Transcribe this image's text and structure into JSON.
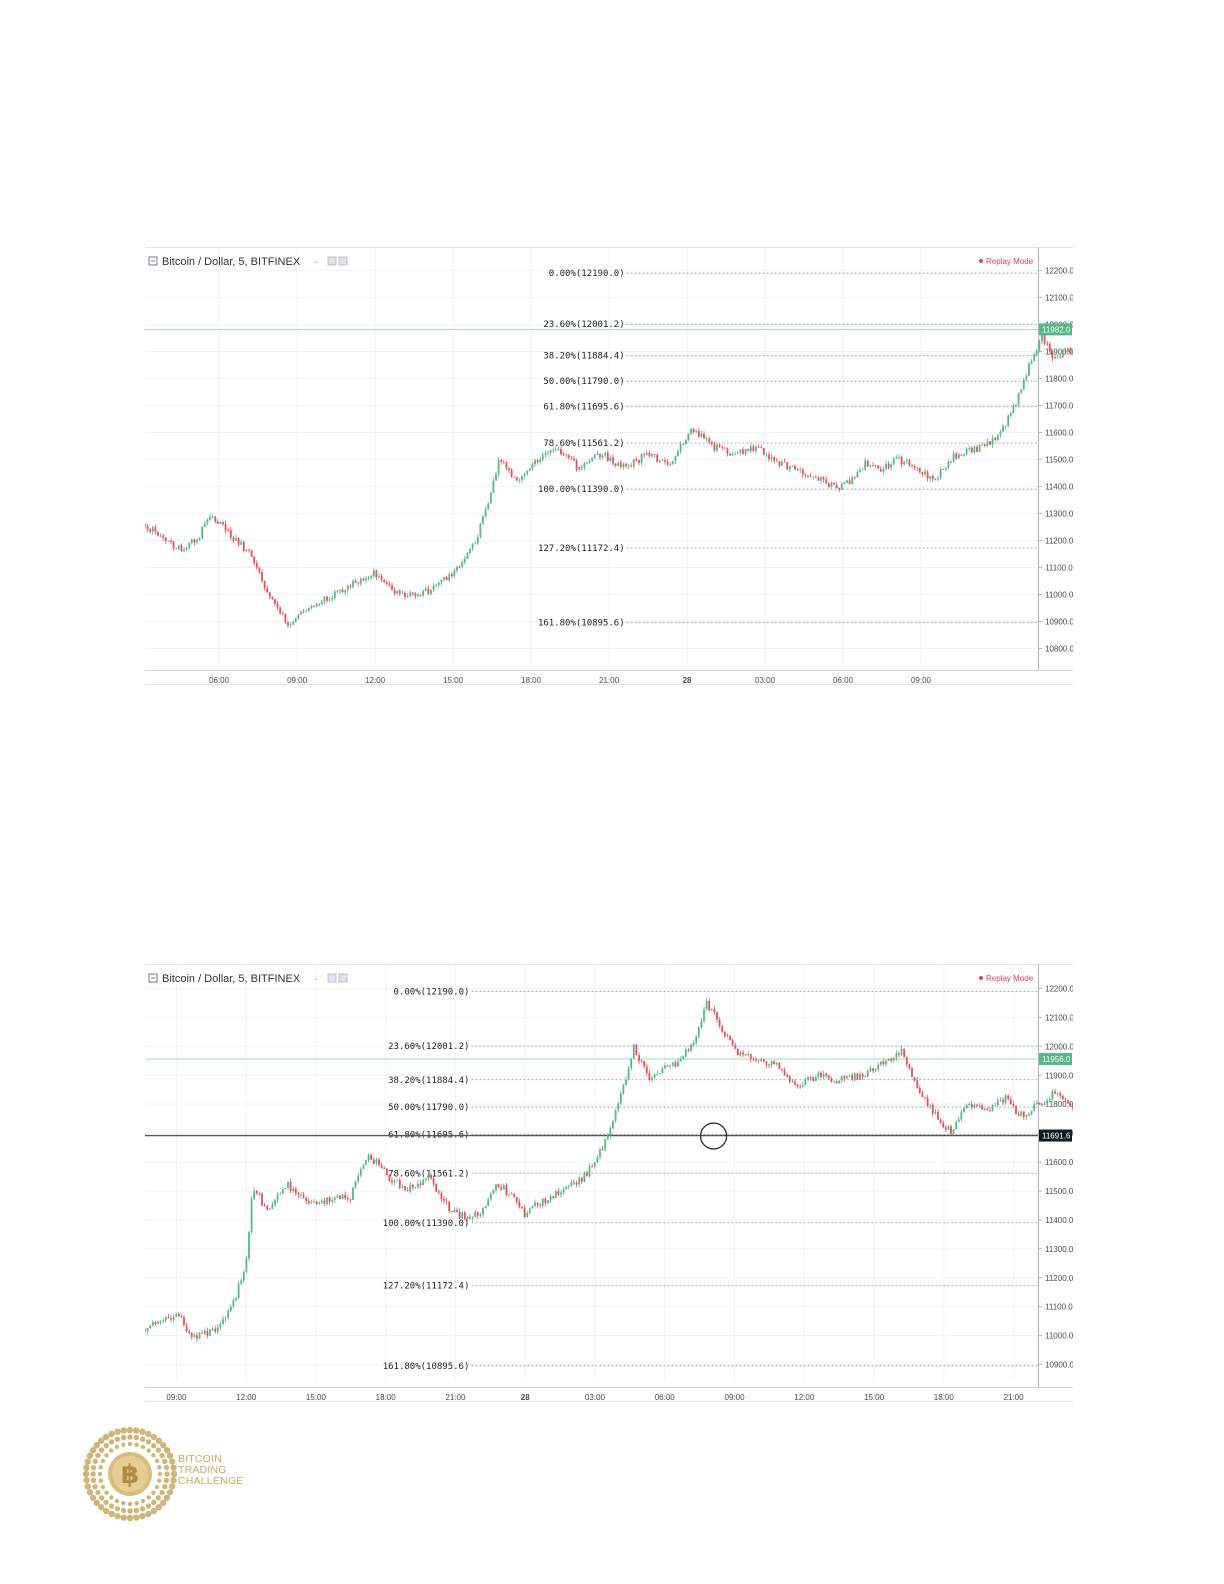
{
  "colors": {
    "up": "#53b987",
    "down": "#eb4d5c",
    "grid": "#f0f3fa",
    "fib_line": "#9598a1",
    "replay": "#e0415a",
    "price_badge_green": "#53b987",
    "price_badge_dark": "#131722",
    "logo_gold": "#c9a760"
  },
  "logo": {
    "icon": "bitcoin-coin-icon",
    "lines": [
      "BITCOIN",
      "TRADING",
      "CHALLENGE"
    ]
  },
  "chart_data": [
    {
      "type": "candlestick",
      "title": "Bitcoin / Dollar, 5, BITFINEX",
      "replay_label": "Replay Mode",
      "ylim": [
        10750,
        12250
      ],
      "y_ticks": [
        12200,
        12100,
        12000,
        11900,
        11800,
        11700,
        11600,
        11500,
        11400,
        11300,
        11200,
        11100,
        11000,
        10900,
        10800
      ],
      "y_tick_labels": [
        "12200.0",
        "12100.0",
        "12000.0",
        "11900.0",
        "11800.0",
        "11700.0",
        "11600.0",
        "11500.0",
        "11400.0",
        "11300.0",
        "11200.0",
        "11100.0",
        "11000.0",
        "10900.0",
        "10800.0"
      ],
      "x_tick_labels": [
        "06:00",
        "09:00",
        "12:00",
        "15:00",
        "18:00",
        "21:00",
        "28",
        "03:00",
        "06:00",
        "09:00"
      ],
      "x_start_label_index": -0.95,
      "x_end_label_index": 10.5,
      "grid": true,
      "fib_levels": [
        {
          "label": "0.00%(12190.0)",
          "price": 12190.0
        },
        {
          "label": "23.60%(12001.2)",
          "price": 12001.2
        },
        {
          "label": "38.20%(11884.4)",
          "price": 11884.4
        },
        {
          "label": "50.00%(11790.0)",
          "price": 11790.0
        },
        {
          "label": "61.80%(11695.6)",
          "price": 11695.6
        },
        {
          "label": "78.60%(11561.2)",
          "price": 11561.2
        },
        {
          "label": "100.00%(11390.0)",
          "price": 11390.0
        },
        {
          "label": "127.20%(11172.4)",
          "price": 11172.4
        },
        {
          "label": "161.80%(10895.6)",
          "price": 10895.6
        }
      ],
      "fib_label_anchor_x_index": 5.2,
      "price_badge": {
        "label": "11982.0",
        "price": 11982.0,
        "style": "green"
      },
      "price_line": {
        "price": 11982.0
      },
      "path": [
        [
          -0.95,
          11260
        ],
        [
          -0.7,
          11200
        ],
        [
          -0.5,
          11170
        ],
        [
          -0.3,
          11200
        ],
        [
          -0.1,
          11290
        ],
        [
          0.15,
          11220
        ],
        [
          0.4,
          11150
        ],
        [
          0.7,
          10960
        ],
        [
          0.9,
          10880
        ],
        [
          1.1,
          10950
        ],
        [
          1.4,
          10990
        ],
        [
          1.7,
          11040
        ],
        [
          2.0,
          11080
        ],
        [
          2.2,
          11020
        ],
        [
          2.4,
          11000
        ],
        [
          2.7,
          11010
        ],
        [
          3.0,
          11080
        ],
        [
          3.3,
          11200
        ],
        [
          3.6,
          11500
        ],
        [
          3.8,
          11420
        ],
        [
          4.0,
          11470
        ],
        [
          4.3,
          11550
        ],
        [
          4.6,
          11470
        ],
        [
          4.9,
          11520
        ],
        [
          5.2,
          11470
        ],
        [
          5.5,
          11520
        ],
        [
          5.8,
          11480
        ],
        [
          6.05,
          11620
        ],
        [
          6.3,
          11550
        ],
        [
          6.6,
          11520
        ],
        [
          6.9,
          11550
        ],
        [
          7.15,
          11490
        ],
        [
          7.4,
          11460
        ],
        [
          7.6,
          11440
        ],
        [
          7.9,
          11395
        ],
        [
          8.1,
          11420
        ],
        [
          8.3,
          11490
        ],
        [
          8.5,
          11460
        ],
        [
          8.7,
          11500
        ],
        [
          8.9,
          11480
        ],
        [
          9.15,
          11420
        ],
        [
          9.4,
          11510
        ],
        [
          9.6,
          11530
        ],
        [
          9.8,
          11550
        ],
        [
          10.0,
          11580
        ],
        [
          10.2,
          11700
        ],
        [
          10.35,
          11820
        ],
        [
          10.55,
          11960
        ],
        [
          10.7,
          11880
        ],
        [
          10.9,
          11900
        ],
        [
          11.1,
          11930
        ],
        [
          11.3,
          12000
        ],
        [
          11.45,
          12150
        ],
        [
          11.6,
          12100
        ],
        [
          11.75,
          12080
        ],
        [
          11.9,
          11980
        ],
        [
          12.05,
          11960
        ],
        [
          12.2,
          11970
        ],
        [
          12.3,
          11982
        ]
      ]
    },
    {
      "type": "candlestick",
      "title": "Bitcoin / Dollar, 5, BITFINEX",
      "replay_label": "Replay Mode",
      "ylim": [
        10850,
        12250
      ],
      "y_ticks": [
        12200,
        12100,
        12000,
        11900,
        11800,
        11700,
        11600,
        11500,
        11400,
        11300,
        11200,
        11100,
        11000,
        10900
      ],
      "y_tick_labels": [
        "12200.0",
        "12100.0",
        "12000.0",
        "11900.0",
        "11800.0",
        "11700.0",
        "11600.0",
        "11500.0",
        "11400.0",
        "11300.0",
        "11200.0",
        "11100.0",
        "11000.0",
        "10900.0"
      ],
      "x_tick_labels": [
        "09:00",
        "12:00",
        "15:00",
        "18:00",
        "21:00",
        "28",
        "03:00",
        "06:00",
        "09:00",
        "12:00",
        "15:00",
        "18:00",
        "21:00"
      ],
      "x_start_label_index": -0.45,
      "x_end_label_index": 12.35,
      "grid": true,
      "fib_levels": [
        {
          "label": "0.00%(12190.0)",
          "price": 12190.0
        },
        {
          "label": "23.60%(12001.2)",
          "price": 12001.2
        },
        {
          "label": "38.20%(11884.4)",
          "price": 11884.4
        },
        {
          "label": "50.00%(11790.0)",
          "price": 11790.0
        },
        {
          "label": "61.80%(11695.6)",
          "price": 11695.6
        },
        {
          "label": "78.60%(11561.2)",
          "price": 11561.2
        },
        {
          "label": "100.00%(11390.0)",
          "price": 11390.0
        },
        {
          "label": "127.20%(11172.4)",
          "price": 11172.4
        },
        {
          "label": "161.80%(10895.6)",
          "price": 10895.6
        }
      ],
      "fib_label_anchor_x_index": 4.2,
      "price_badge": {
        "label": "11956.0",
        "price": 11956.0,
        "style": "green"
      },
      "price_line": {
        "price": 11956.0
      },
      "hline": {
        "label": "11691.6",
        "price": 11691.6,
        "style": "dark"
      },
      "highlight": {
        "x_index": 7.7,
        "price": 11690
      },
      "path": [
        [
          -0.45,
          11020
        ],
        [
          -0.2,
          11050
        ],
        [
          0.0,
          11080
        ],
        [
          0.2,
          11000
        ],
        [
          0.5,
          11010
        ],
        [
          0.8,
          11100
        ],
        [
          1.0,
          11250
        ],
        [
          1.1,
          11520
        ],
        [
          1.3,
          11430
        ],
        [
          1.6,
          11520
        ],
        [
          1.9,
          11460
        ],
        [
          2.2,
          11470
        ],
        [
          2.5,
          11480
        ],
        [
          2.75,
          11630
        ],
        [
          3.0,
          11560
        ],
        [
          3.3,
          11500
        ],
        [
          3.6,
          11550
        ],
        [
          3.9,
          11440
        ],
        [
          4.2,
          11400
        ],
        [
          4.4,
          11440
        ],
        [
          4.6,
          11520
        ],
        [
          4.8,
          11490
        ],
        [
          5.0,
          11420
        ],
        [
          5.2,
          11460
        ],
        [
          5.5,
          11500
        ],
        [
          5.8,
          11540
        ],
        [
          6.0,
          11600
        ],
        [
          6.2,
          11700
        ],
        [
          6.4,
          11850
        ],
        [
          6.55,
          12000
        ],
        [
          6.8,
          11880
        ],
        [
          7.0,
          11920
        ],
        [
          7.2,
          11950
        ],
        [
          7.4,
          12000
        ],
        [
          7.6,
          12150
        ],
        [
          7.8,
          12070
        ],
        [
          8.0,
          11980
        ],
        [
          8.3,
          11950
        ],
        [
          8.6,
          11940
        ],
        [
          8.9,
          11860
        ],
        [
          9.2,
          11900
        ],
        [
          9.5,
          11880
        ],
        [
          9.8,
          11900
        ],
        [
          10.1,
          11940
        ],
        [
          10.4,
          11990
        ],
        [
          10.6,
          11860
        ],
        [
          10.9,
          11760
        ],
        [
          11.1,
          11700
        ],
        [
          11.3,
          11790
        ],
        [
          11.6,
          11780
        ],
        [
          11.9,
          11820
        ],
        [
          12.1,
          11760
        ],
        [
          12.35,
          11800
        ],
        [
          12.6,
          11840
        ],
        [
          12.9,
          11780
        ],
        [
          13.2,
          11770
        ],
        [
          13.5,
          11790
        ],
        [
          13.8,
          11860
        ],
        [
          14.1,
          11900
        ],
        [
          14.4,
          11920
        ],
        [
          14.7,
          11900
        ],
        [
          15.0,
          11880
        ],
        [
          15.2,
          11850
        ],
        [
          15.35,
          11820
        ],
        [
          15.5,
          11956
        ]
      ]
    }
  ]
}
